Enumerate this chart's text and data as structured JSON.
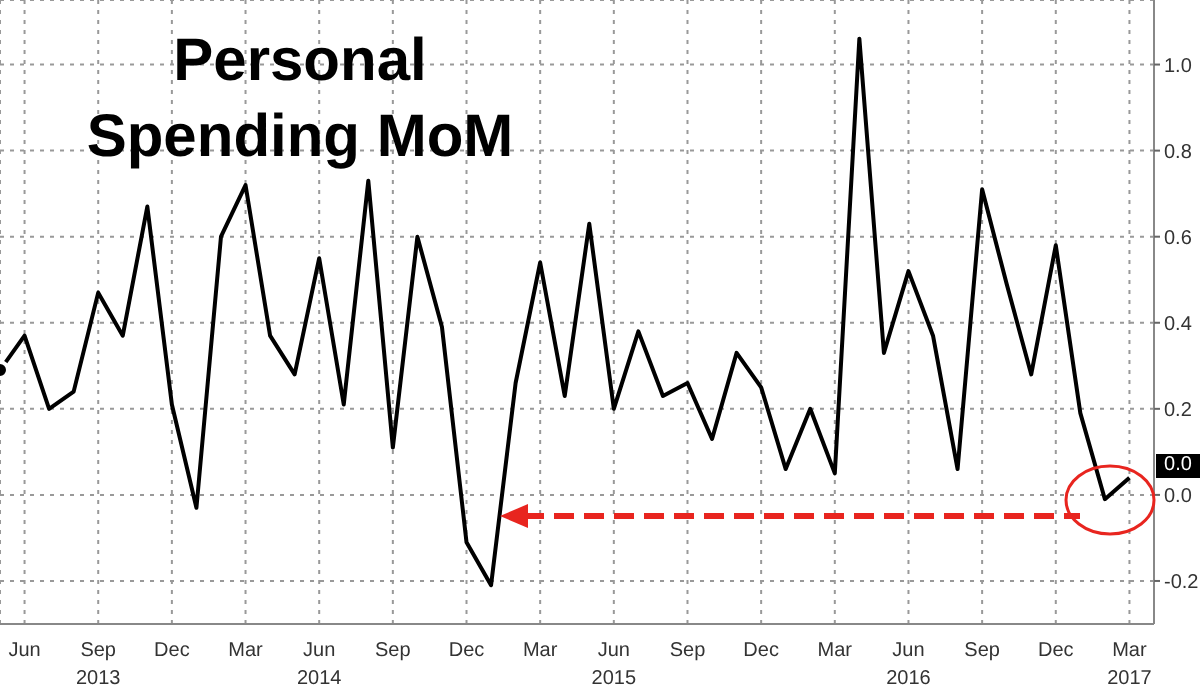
{
  "chart_data": {
    "type": "line",
    "title": "Personal Spending MoM",
    "x": [
      "2013-05",
      "2013-06",
      "2013-07",
      "2013-08",
      "2013-09",
      "2013-10",
      "2013-11",
      "2013-12",
      "2014-01",
      "2014-02",
      "2014-03",
      "2014-04",
      "2014-05",
      "2014-06",
      "2014-07",
      "2014-08",
      "2014-09",
      "2014-10",
      "2014-11",
      "2014-12",
      "2015-01",
      "2015-02",
      "2015-03",
      "2015-04",
      "2015-05",
      "2015-06",
      "2015-07",
      "2015-08",
      "2015-09",
      "2015-10",
      "2015-11",
      "2015-12",
      "2016-01",
      "2016-02",
      "2016-03",
      "2016-04",
      "2016-05",
      "2016-06",
      "2016-07",
      "2016-08",
      "2016-09",
      "2016-10",
      "2016-11",
      "2016-12",
      "2017-01",
      "2017-02",
      "2017-03"
    ],
    "series": [
      {
        "color": "#000000",
        "values": [
          0.29,
          0.37,
          0.2,
          0.24,
          0.47,
          0.37,
          0.67,
          0.21,
          -0.03,
          0.6,
          0.72,
          0.37,
          0.28,
          0.55,
          0.21,
          0.73,
          0.11,
          0.6,
          0.39,
          -0.11,
          -0.21,
          0.26,
          0.54,
          0.23,
          0.63,
          0.2,
          0.38,
          0.23,
          0.26,
          0.13,
          0.33,
          0.25,
          0.06,
          0.2,
          0.05,
          1.06,
          0.33,
          0.52,
          0.37,
          0.06,
          0.71,
          0.49,
          0.28,
          0.58,
          0.19,
          -0.01,
          0.04
        ]
      }
    ],
    "xlim": [
      "2013-05",
      "2017-04"
    ],
    "xticks": [
      {
        "value": "2013-06",
        "label": "Jun"
      },
      {
        "value": "2013-09",
        "label": "Sep\n2013"
      },
      {
        "value": "2013-12",
        "label": "Dec"
      },
      {
        "value": "2014-03",
        "label": "Mar"
      },
      {
        "value": "2014-06",
        "label": "Jun\n2014"
      },
      {
        "value": "2014-09",
        "label": "Sep"
      },
      {
        "value": "2014-12",
        "label": "Dec"
      },
      {
        "value": "2015-03",
        "label": "Mar"
      },
      {
        "value": "2015-06",
        "label": "Jun\n2015"
      },
      {
        "value": "2015-09",
        "label": "Sep"
      },
      {
        "value": "2015-12",
        "label": "Dec"
      },
      {
        "value": "2016-03",
        "label": "Mar"
      },
      {
        "value": "2016-06",
        "label": "Jun\n2016"
      },
      {
        "value": "2016-09",
        "label": "Sep"
      },
      {
        "value": "2016-12",
        "label": "Dec"
      },
      {
        "value": "2017-03",
        "label": "Mar\n2017"
      }
    ],
    "ylim": [
      -0.3,
      1.15
    ],
    "yticks": [
      {
        "value": -0.2,
        "label": "-0.2"
      },
      {
        "value": 0,
        "label": "0.0"
      },
      {
        "value": 0.2,
        "label": "0.2"
      },
      {
        "value": 0.4,
        "label": "0.4"
      },
      {
        "value": 0.6,
        "label": "0.6"
      },
      {
        "value": 0.8,
        "label": "0.8"
      },
      {
        "value": 1,
        "label": "1.0"
      }
    ],
    "annotations": [
      {
        "text": "0.0",
        "x": "2017-03",
        "y": 0.04
      }
    ],
    "grid": true,
    "marker": "none",
    "line_style": "solid"
  }
}
